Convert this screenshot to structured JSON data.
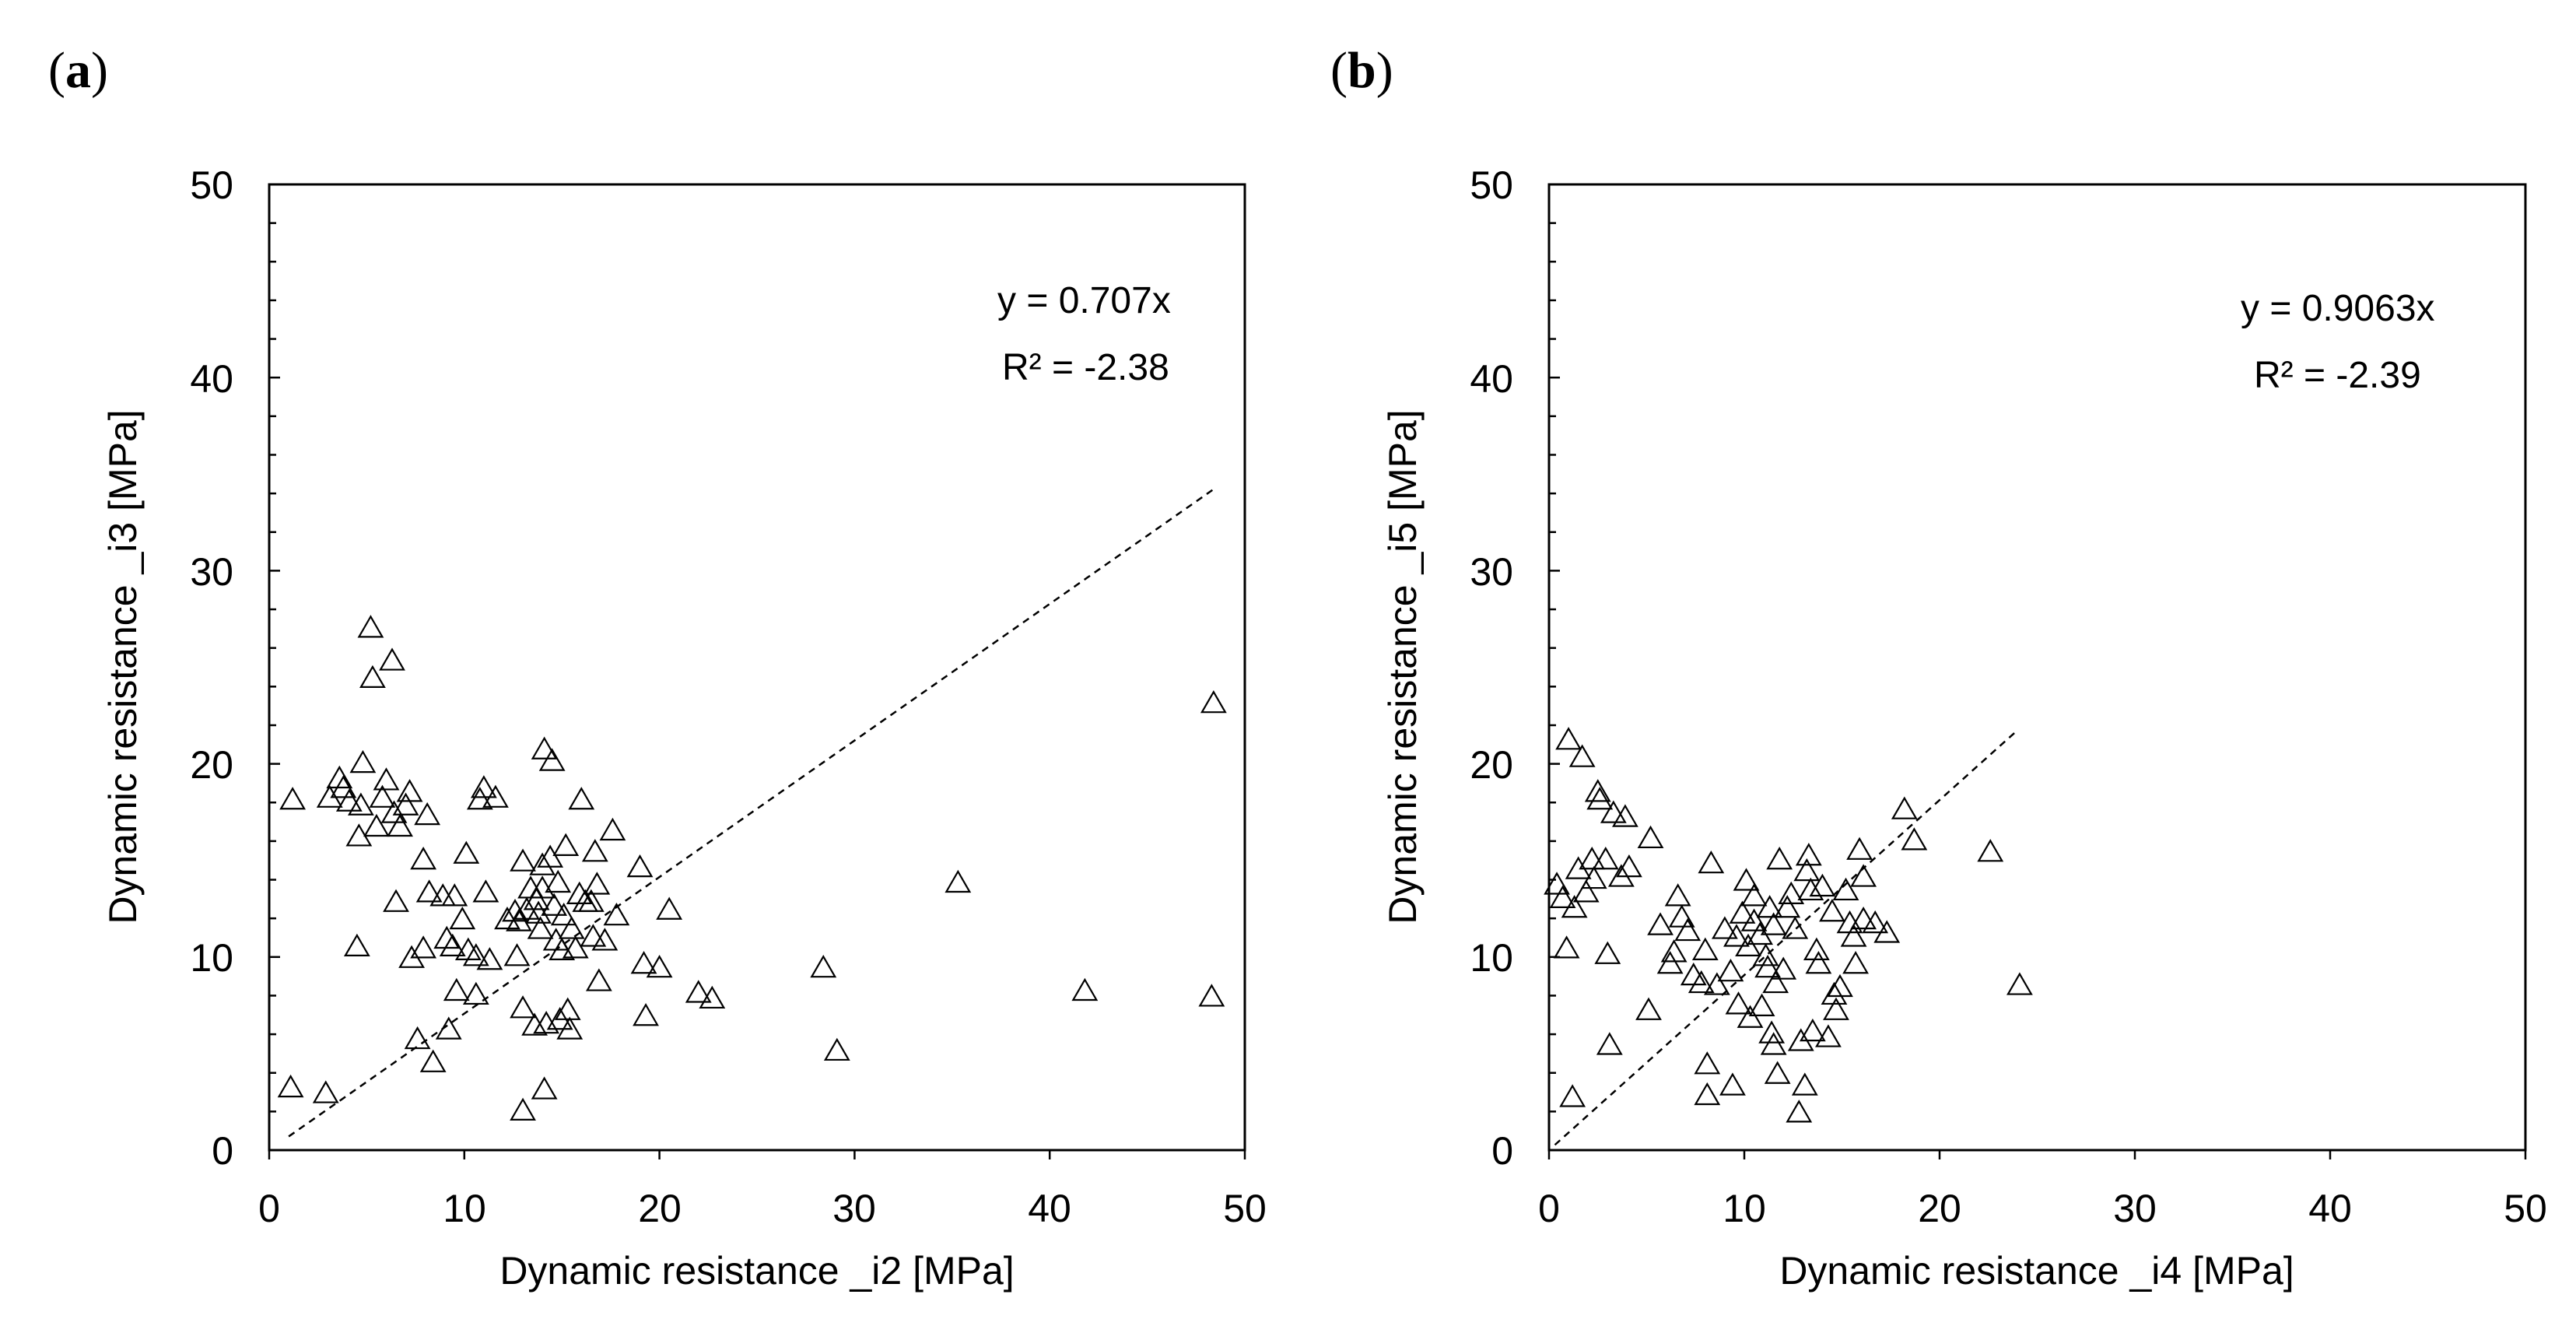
{
  "chart_data": [
    {
      "type": "scatter",
      "panel_label_open": "(",
      "panel_label_letter": "a",
      "panel_label_close": ")",
      "xlabel": "Dynamic resistance _i2 [MPa]",
      "ylabel": "Dynamic resistance _i3 [MPa]",
      "xlim": [
        0,
        50
      ],
      "ylim": [
        0,
        50
      ],
      "xticks": [
        0,
        10,
        20,
        30,
        40,
        50
      ],
      "yticks": [
        0,
        10,
        20,
        30,
        40,
        50
      ],
      "marker": "open-triangle",
      "trendline": {
        "slope": 0.707,
        "x_start": 1,
        "x_end": 48.5,
        "style": "dashed"
      },
      "equation": "y = 0.707x",
      "r_squared": "R² = -2.38",
      "points": [
        [
          1.2,
          18.2
        ],
        [
          1.1,
          3.3
        ],
        [
          2.9,
          3
        ],
        [
          3.1,
          18.3
        ],
        [
          3.6,
          19.3
        ],
        [
          3.8,
          18.8
        ],
        [
          4.1,
          18.1
        ],
        [
          4.5,
          10.6
        ],
        [
          4.6,
          16.3
        ],
        [
          4.7,
          17.9
        ],
        [
          4.8,
          20.1
        ],
        [
          5.2,
          27.1
        ],
        [
          5.3,
          24.5
        ],
        [
          5.5,
          16.8
        ],
        [
          5.8,
          18.3
        ],
        [
          6,
          19.2
        ],
        [
          6.3,
          25.4
        ],
        [
          6.4,
          17.5
        ],
        [
          6.5,
          12.9
        ],
        [
          6.7,
          16.8
        ],
        [
          7,
          17.9
        ],
        [
          7.2,
          18.6
        ],
        [
          7.3,
          10
        ],
        [
          7.6,
          5.8
        ],
        [
          7.9,
          15.1
        ],
        [
          7.9,
          10.5
        ],
        [
          8.1,
          17.4
        ],
        [
          8.2,
          13.4
        ],
        [
          8.4,
          4.6
        ],
        [
          8.9,
          13.2
        ],
        [
          9.1,
          11
        ],
        [
          9.2,
          6.3
        ],
        [
          9.4,
          10.6
        ],
        [
          9.5,
          13.2
        ],
        [
          9.6,
          8.3
        ],
        [
          9.9,
          12
        ],
        [
          10.1,
          15.4
        ],
        [
          10.2,
          10.4
        ],
        [
          10.6,
          10.1
        ],
        [
          10.6,
          8.1
        ],
        [
          10.8,
          18.2
        ],
        [
          11,
          18.8
        ],
        [
          11.1,
          13.4
        ],
        [
          11.3,
          9.9
        ],
        [
          11.6,
          18.3
        ],
        [
          12.2,
          12
        ],
        [
          12.6,
          12.4
        ],
        [
          12.7,
          10.1
        ],
        [
          12.8,
          11.9
        ],
        [
          13,
          15
        ],
        [
          13,
          7.4
        ],
        [
          13,
          2.1
        ],
        [
          13.2,
          12.5
        ],
        [
          13.4,
          13.6
        ],
        [
          13.6,
          6.5
        ],
        [
          13.7,
          13
        ],
        [
          13.8,
          12.3
        ],
        [
          13.9,
          11.5
        ],
        [
          14,
          14.8
        ],
        [
          14,
          13.6
        ],
        [
          14.1,
          20.8
        ],
        [
          14.1,
          3.2
        ],
        [
          14.2,
          6.6
        ],
        [
          14.4,
          15.2
        ],
        [
          14.5,
          20.2
        ],
        [
          14.6,
          12.7
        ],
        [
          14.7,
          10.9
        ],
        [
          14.8,
          13.9
        ],
        [
          14.9,
          6.8
        ],
        [
          15,
          10.4
        ],
        [
          15.1,
          12.2
        ],
        [
          15.2,
          15.8
        ],
        [
          15.3,
          7.3
        ],
        [
          15.4,
          6.3
        ],
        [
          15.5,
          11.5
        ],
        [
          15.7,
          10.5
        ],
        [
          15.9,
          13.3
        ],
        [
          16,
          18.2
        ],
        [
          16.2,
          12.9
        ],
        [
          16.5,
          12.9
        ],
        [
          16.6,
          11.1
        ],
        [
          16.7,
          15.5
        ],
        [
          16.8,
          13.8
        ],
        [
          16.9,
          8.8
        ],
        [
          17.2,
          10.9
        ],
        [
          17.6,
          16.6
        ],
        [
          17.8,
          12.2
        ],
        [
          19,
          14.7
        ],
        [
          19.2,
          9.7
        ],
        [
          19.3,
          7
        ],
        [
          20,
          9.5
        ],
        [
          20.5,
          12.5
        ],
        [
          22,
          8.2
        ],
        [
          22.7,
          7.9
        ],
        [
          28.4,
          9.5
        ],
        [
          29.1,
          5.2
        ],
        [
          35.3,
          13.9
        ],
        [
          41.8,
          8.3
        ],
        [
          48.3,
          8
        ],
        [
          48.4,
          23.2
        ]
      ]
    },
    {
      "type": "scatter",
      "panel_label_open": "(",
      "panel_label_letter": "b",
      "panel_label_close": ")",
      "xlabel": "Dynamic resistance _i4 [MPa]",
      "ylabel": "Dynamic resistance _i5 [MPa]",
      "xlim": [
        0,
        50
      ],
      "ylim": [
        0,
        50
      ],
      "xticks": [
        0,
        10,
        20,
        30,
        40,
        50
      ],
      "yticks": [
        0,
        10,
        20,
        30,
        40,
        50
      ],
      "marker": "open-triangle",
      "trendline": {
        "slope": 0.9063,
        "x_start": 0.3,
        "x_end": 24,
        "style": "dashed"
      },
      "equation": "y = 0.9063x",
      "r_squared": "R² = -2.39",
      "points": [
        [
          0.4,
          13.8
        ],
        [
          0.7,
          13.1
        ],
        [
          0.9,
          10.5
        ],
        [
          1,
          21.3
        ],
        [
          1.2,
          2.8
        ],
        [
          1.3,
          12.6
        ],
        [
          1.5,
          14.6
        ],
        [
          1.7,
          20.4
        ],
        [
          1.9,
          13.4
        ],
        [
          2.2,
          15.1
        ],
        [
          2.3,
          14.1
        ],
        [
          2.5,
          18.6
        ],
        [
          2.6,
          18.2
        ],
        [
          2.9,
          15.1
        ],
        [
          3,
          10.2
        ],
        [
          3.1,
          5.5
        ],
        [
          3.3,
          17.5
        ],
        [
          3.7,
          14.2
        ],
        [
          3.9,
          17.3
        ],
        [
          4.1,
          14.7
        ],
        [
          5.1,
          7.3
        ],
        [
          5.2,
          16.2
        ],
        [
          5.7,
          11.7
        ],
        [
          6.2,
          9.7
        ],
        [
          6.4,
          10.3
        ],
        [
          6.6,
          13.2
        ],
        [
          6.8,
          12.1
        ],
        [
          7.1,
          11.4
        ],
        [
          7.4,
          9.1
        ],
        [
          7.8,
          8.7
        ],
        [
          8,
          10.4
        ],
        [
          8.1,
          2.9
        ],
        [
          8.1,
          4.5
        ],
        [
          8.3,
          14.9
        ],
        [
          8.6,
          8.6
        ],
        [
          9,
          11.5
        ],
        [
          9.3,
          9.3
        ],
        [
          9.4,
          3.4
        ],
        [
          9.6,
          11.1
        ],
        [
          9.7,
          7.6
        ],
        [
          9.9,
          12.3
        ],
        [
          10.1,
          14
        ],
        [
          10.2,
          10.6
        ],
        [
          10.3,
          6.9
        ],
        [
          10.5,
          11.9
        ],
        [
          10.5,
          13.2
        ],
        [
          10.8,
          11.2
        ],
        [
          10.9,
          7.5
        ],
        [
          11.1,
          10.1
        ],
        [
          11.2,
          9.5
        ],
        [
          11.3,
          12.6
        ],
        [
          11.4,
          6.1
        ],
        [
          11.5,
          11.7
        ],
        [
          11.5,
          5.5
        ],
        [
          11.6,
          8.7
        ],
        [
          11.7,
          4
        ],
        [
          11.8,
          15.1
        ],
        [
          12,
          9.4
        ],
        [
          12.2,
          12.6
        ],
        [
          12.4,
          13.3
        ],
        [
          12.6,
          11.5
        ],
        [
          12.8,
          2
        ],
        [
          12.9,
          5.7
        ],
        [
          13.1,
          3.4
        ],
        [
          13.2,
          14.5
        ],
        [
          13.3,
          15.3
        ],
        [
          13.4,
          13.5
        ],
        [
          13.5,
          6.2
        ],
        [
          13.7,
          10.4
        ],
        [
          13.8,
          9.7
        ],
        [
          14,
          13.7
        ],
        [
          14.3,
          5.9
        ],
        [
          14.5,
          12.4
        ],
        [
          14.6,
          8.1
        ],
        [
          14.7,
          7.3
        ],
        [
          14.9,
          8.5
        ],
        [
          15.2,
          13.5
        ],
        [
          15.4,
          11.8
        ],
        [
          15.6,
          11.1
        ],
        [
          15.7,
          9.7
        ],
        [
          15.9,
          15.6
        ],
        [
          16.1,
          12
        ],
        [
          16.1,
          14.2
        ],
        [
          16.7,
          11.8
        ],
        [
          17.3,
          11.3
        ],
        [
          18.2,
          17.7
        ],
        [
          18.7,
          16.1
        ],
        [
          22.6,
          15.5
        ],
        [
          24.1,
          8.6
        ]
      ]
    }
  ]
}
